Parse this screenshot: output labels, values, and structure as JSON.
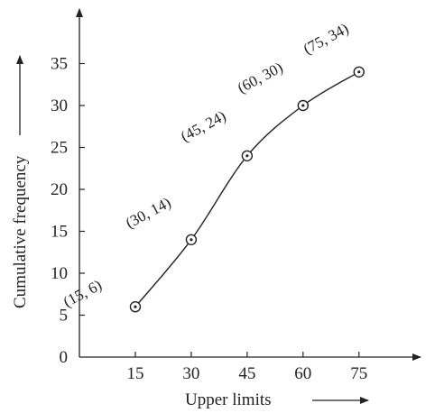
{
  "chart_data": {
    "type": "line",
    "xlabel": "Upper limits",
    "ylabel": "Cumulative frequency",
    "x_ticks": [
      15,
      30,
      45,
      60,
      75
    ],
    "y_ticks": [
      0,
      5,
      10,
      15,
      20,
      25,
      30,
      35
    ],
    "xlim": [
      0,
      90
    ],
    "ylim": [
      0,
      39
    ],
    "grid": false,
    "smooth": true,
    "points": [
      {
        "x": 15,
        "y": 6,
        "label": "(15, 6)"
      },
      {
        "x": 30,
        "y": 14,
        "label": "(30, 14)"
      },
      {
        "x": 45,
        "y": 24,
        "label": "(45, 24)"
      },
      {
        "x": 60,
        "y": 30,
        "label": "(60, 30)"
      },
      {
        "x": 75,
        "y": 34,
        "label": "(75, 34)"
      }
    ]
  }
}
